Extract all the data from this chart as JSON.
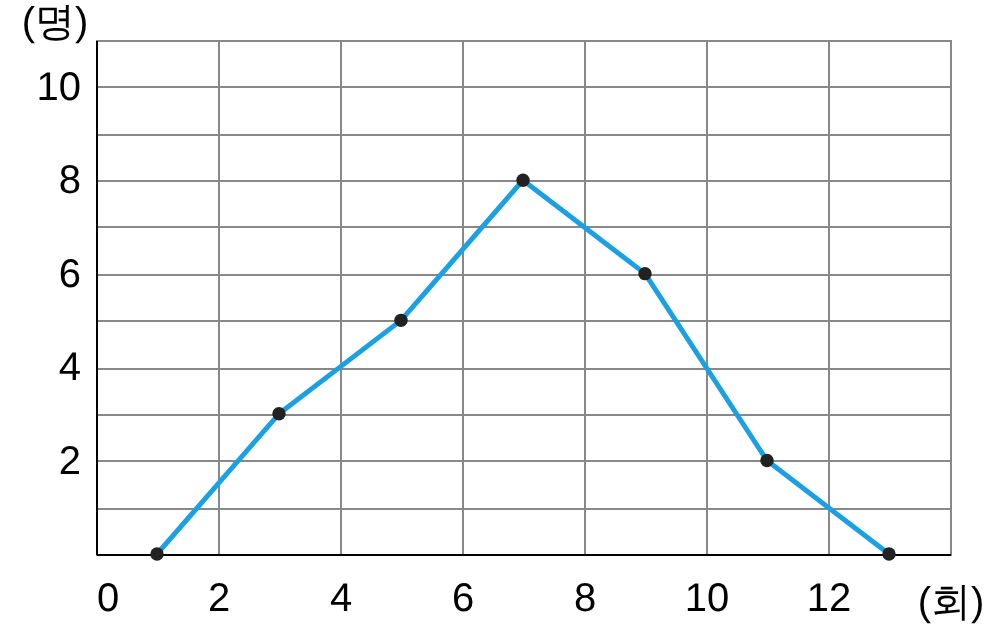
{
  "chart_data": {
    "type": "line",
    "xlabel": "(회)",
    "ylabel": "(명)",
    "x": [
      1,
      3,
      5,
      7,
      9,
      11,
      13
    ],
    "series": [
      {
        "color": "#1ba1e2",
        "values": [
          0,
          3,
          5,
          8,
          6,
          2,
          0
        ]
      }
    ],
    "xlim": [
      0,
      14
    ],
    "xticks": [
      0,
      2,
      4,
      6,
      8,
      10,
      12,
      {
        "value": 14,
        "label": null
      }
    ],
    "ylim": [
      0,
      11
    ],
    "yticks": [
      {
        "value": 1,
        "label": null
      },
      2,
      {
        "value": 3,
        "label": null
      },
      4,
      {
        "value": 5,
        "label": null
      },
      6,
      {
        "value": 7,
        "label": null
      },
      8,
      {
        "value": 9,
        "label": null
      },
      10,
      {
        "value": 11,
        "label": null
      }
    ],
    "grid": true,
    "marker": "circle",
    "line_style": "solid"
  }
}
